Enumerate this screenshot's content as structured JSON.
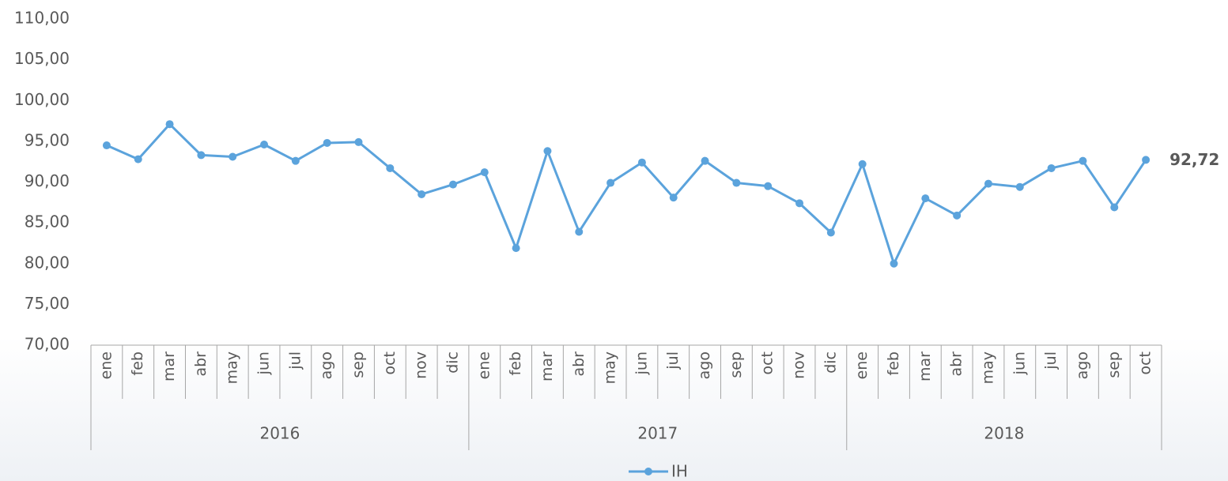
{
  "chart_data": {
    "type": "line",
    "groups": [
      {
        "name": "2016",
        "categories": [
          "ene",
          "feb",
          "mar",
          "abr",
          "may",
          "jun",
          "jul",
          "ago",
          "sep",
          "oct",
          "nov",
          "dic"
        ]
      },
      {
        "name": "2017",
        "categories": [
          "ene",
          "feb",
          "mar",
          "abr",
          "may",
          "jun",
          "jul",
          "ago",
          "sep",
          "oct",
          "nov",
          "dic"
        ]
      },
      {
        "name": "2018",
        "categories": [
          "ene",
          "feb",
          "mar",
          "abr",
          "may",
          "jun",
          "jul",
          "ago",
          "sep",
          "oct"
        ]
      }
    ],
    "series": [
      {
        "name": "IH",
        "color": "#5ba3dc",
        "values": [
          94.5,
          92.8,
          97.1,
          93.3,
          93.1,
          94.6,
          92.6,
          94.8,
          94.9,
          91.7,
          88.5,
          89.7,
          91.2,
          81.9,
          93.8,
          83.9,
          89.9,
          92.4,
          88.1,
          92.6,
          89.9,
          89.5,
          87.4,
          83.8,
          92.2,
          80.0,
          88.0,
          85.9,
          89.8,
          89.4,
          91.7,
          92.6,
          86.9,
          92.72
        ],
        "value_labels": [
          null,
          null,
          null,
          null,
          null,
          null,
          null,
          null,
          null,
          null,
          null,
          null,
          null,
          null,
          null,
          null,
          null,
          null,
          null,
          null,
          null,
          null,
          null,
          null,
          null,
          null,
          null,
          null,
          null,
          null,
          null,
          null,
          null,
          "92,72"
        ]
      }
    ],
    "ylim": [
      70,
      110
    ],
    "yticks": [
      {
        "value": 70,
        "label": "70,00"
      },
      {
        "value": 75,
        "label": "75,00"
      },
      {
        "value": 80,
        "label": "80,00"
      },
      {
        "value": 85,
        "label": "85,00"
      },
      {
        "value": 90,
        "label": "90,00"
      },
      {
        "value": 95,
        "label": "95,00"
      },
      {
        "value": 100,
        "label": "100,00"
      },
      {
        "value": 105,
        "label": "105,00"
      },
      {
        "value": 110,
        "label": "110,00"
      }
    ],
    "grid": false,
    "legend": "bottom"
  }
}
